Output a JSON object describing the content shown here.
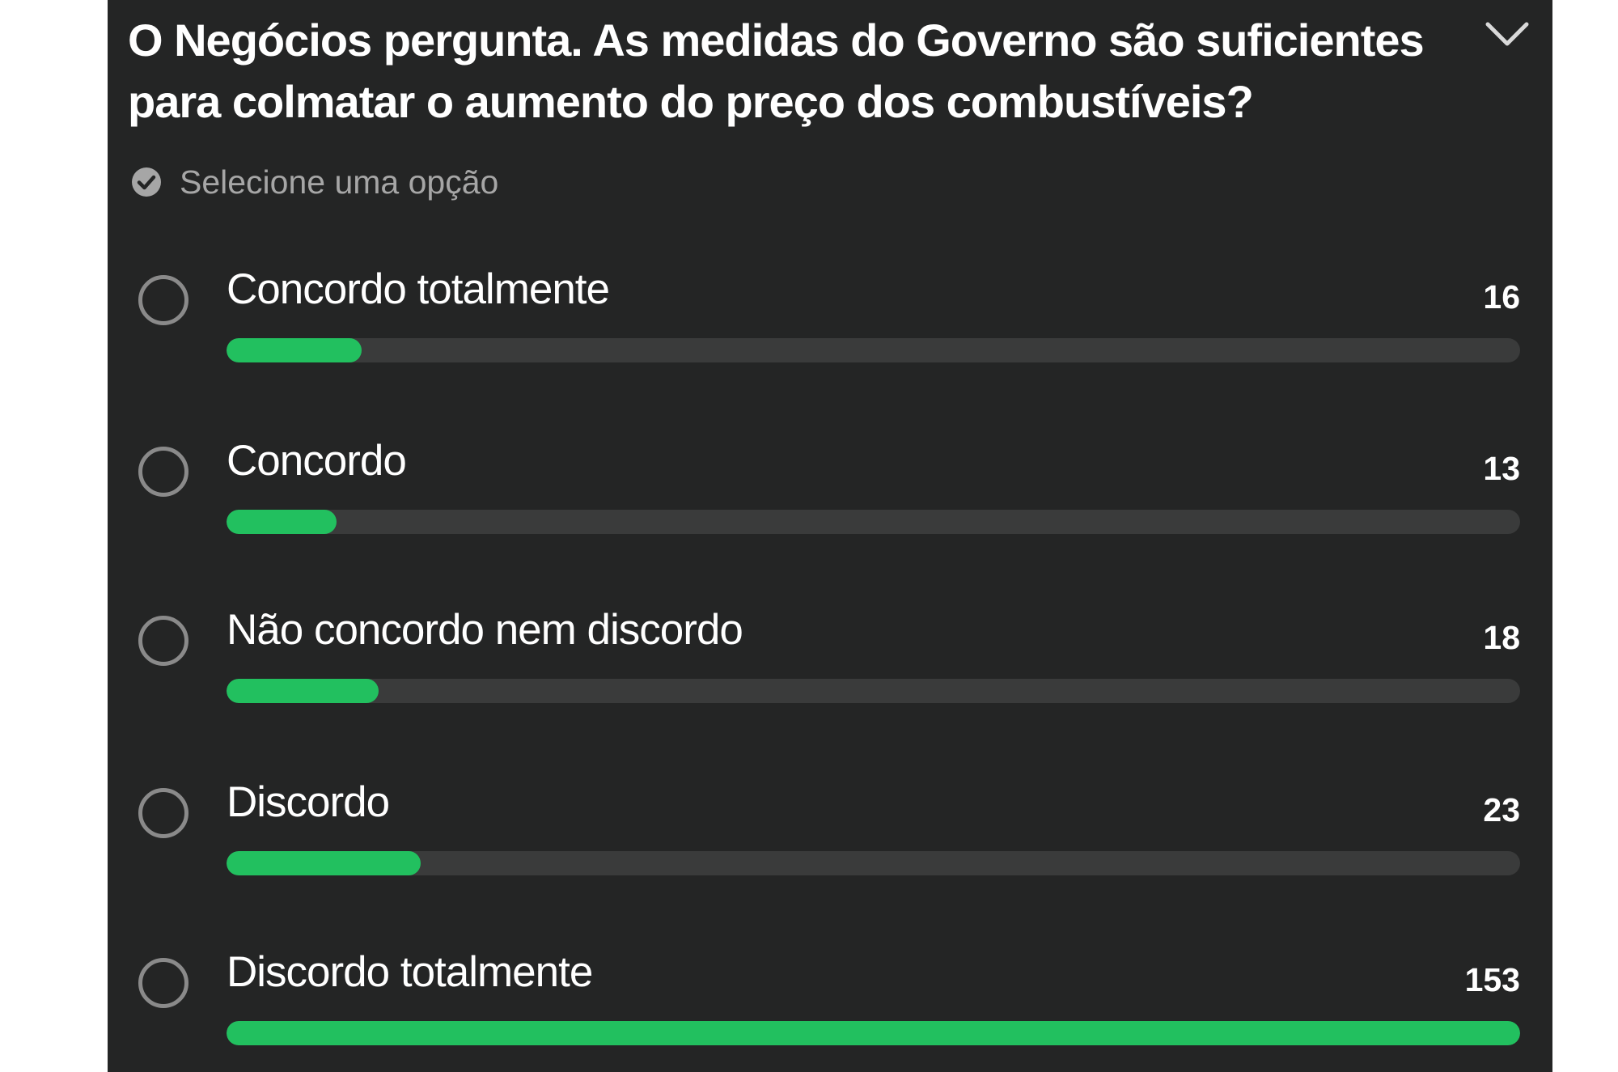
{
  "poll": {
    "question": "O Negócios pergunta. As medidas do Governo são suficientes\npara colmatar o aumento do preço dos combustíveis?",
    "hint": "Selecione uma opção",
    "accent_color": "#22c05f",
    "background_color": "#242525",
    "icons": {
      "collapse": "chevron-down-icon",
      "hint": "check-circle-icon"
    },
    "options": [
      {
        "label": "Concordo totalmente",
        "count": "16",
        "votes": 16
      },
      {
        "label": "Concordo",
        "count": "13",
        "votes": 13
      },
      {
        "label": "Não concordo nem discordo",
        "count": "18",
        "votes": 18
      },
      {
        "label": "Discordo",
        "count": "23",
        "votes": 23
      },
      {
        "label": "Discordo totalmente",
        "count": "153",
        "votes": 153
      }
    ]
  }
}
